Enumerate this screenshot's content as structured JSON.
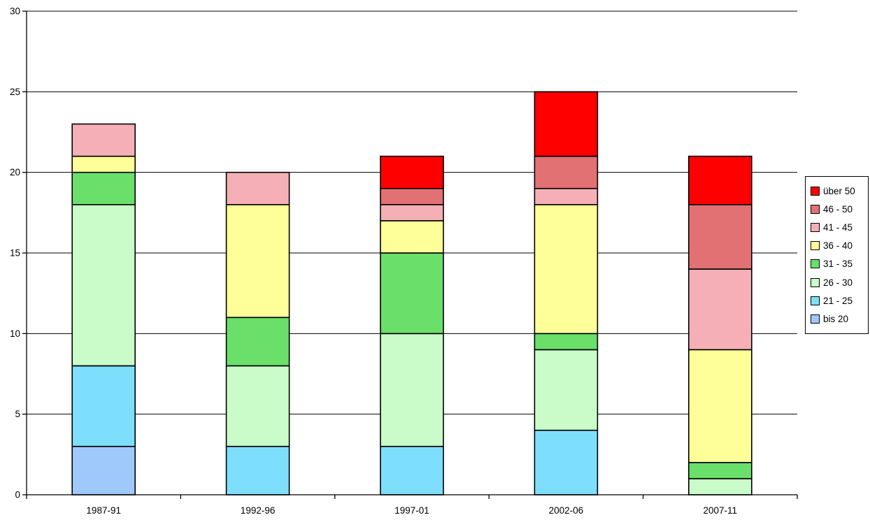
{
  "chart_data": {
    "type": "bar",
    "stacked": true,
    "title": "",
    "xlabel": "",
    "ylabel": "",
    "categories": [
      "1987-91",
      "1992-96",
      "1997-01",
      "2002-06",
      "2007-11"
    ],
    "series": [
      {
        "name": "bis 20",
        "color": "#9FC9FA",
        "values": [
          3,
          0,
          0,
          0,
          0
        ]
      },
      {
        "name": "21 - 25",
        "color": "#7EDFFC",
        "values": [
          5,
          3,
          3,
          4,
          0
        ]
      },
      {
        "name": "26 - 30",
        "color": "#C9FCC9",
        "values": [
          10,
          5,
          7,
          5,
          1
        ]
      },
      {
        "name": "31 - 35",
        "color": "#6ADF6A",
        "values": [
          2,
          3,
          5,
          1,
          1
        ]
      },
      {
        "name": "36 - 40",
        "color": "#FFFF99",
        "values": [
          1,
          7,
          2,
          8,
          7
        ]
      },
      {
        "name": "41 - 45",
        "color": "#F4B0B6",
        "values": [
          2,
          2,
          1,
          1,
          5
        ]
      },
      {
        "name": "46 - 50",
        "color": "#E27173",
        "values": [
          0,
          0,
          1,
          2,
          4
        ]
      },
      {
        "name": "über 50",
        "color": "#FF0000",
        "values": [
          0,
          0,
          2,
          4,
          3
        ]
      }
    ],
    "totals": [
      23,
      20,
      21,
      25,
      21
    ],
    "ylim": [
      0,
      30
    ],
    "yticks": [
      0,
      5,
      10,
      15,
      20,
      25,
      30
    ],
    "grid": true,
    "legend_position": "right",
    "legend_order_top_to_bottom": [
      "über 50",
      "46 - 50",
      "41 - 45",
      "36 - 40",
      "31 - 35",
      "26 - 30",
      "21 - 25",
      "bis 20"
    ],
    "axis_color": "#000000",
    "background_color": "#FFFFFF"
  }
}
